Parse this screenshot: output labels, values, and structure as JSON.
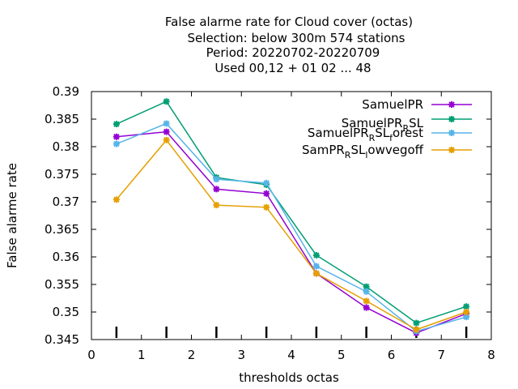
{
  "chart_data": {
    "type": "line",
    "title_lines": [
      "False alarme rate  for Cloud cover (octas)",
      "Selection: below 300m    574 stations",
      "Period: 20220702-20220709",
      "Used  00,12  + 01 02 ... 48"
    ],
    "xlabel": "thresholds octas",
    "ylabel": "False alarme rate",
    "xlim": [
      0,
      8
    ],
    "ylim": [
      0.345,
      0.39
    ],
    "x_ticks": [
      "0",
      "1",
      "2",
      "3",
      "4",
      "5",
      "6",
      "7",
      "8"
    ],
    "y_ticks": [
      "0.345",
      "0.35",
      "0.355",
      "0.36",
      "0.365",
      "0.37",
      "0.375",
      "0.38",
      "0.385",
      "0.39"
    ],
    "x": [
      0.5,
      1.5,
      2.5,
      3.5,
      4.5,
      5.5,
      6.5,
      7.5
    ],
    "legend_position": "top-right",
    "grid": false,
    "series": [
      {
        "name": "SamuelPR",
        "color": "#9400d3",
        "marker": "star",
        "values": [
          0.3818,
          0.3827,
          0.3723,
          0.3715,
          0.357,
          0.3508,
          0.3462,
          0.3497
        ]
      },
      {
        "name": "SamuelPR_RSL",
        "color": "#009e73",
        "marker": "star",
        "values": [
          0.3841,
          0.3882,
          0.3744,
          0.3731,
          0.3603,
          0.3546,
          0.348,
          0.351
        ]
      },
      {
        "name": "SamuelPR_RSL_forest",
        "color": "#56b4e9",
        "marker": "star",
        "values": [
          0.3805,
          0.3842,
          0.3741,
          0.3734,
          0.3583,
          0.3537,
          0.3465,
          0.3491
        ]
      },
      {
        "name": "SamPR_RSL_lowvegoff",
        "color": "#e69f00",
        "marker": "star",
        "values": [
          0.3704,
          0.3812,
          0.3694,
          0.369,
          0.357,
          0.352,
          0.3468,
          0.35
        ]
      }
    ]
  }
}
